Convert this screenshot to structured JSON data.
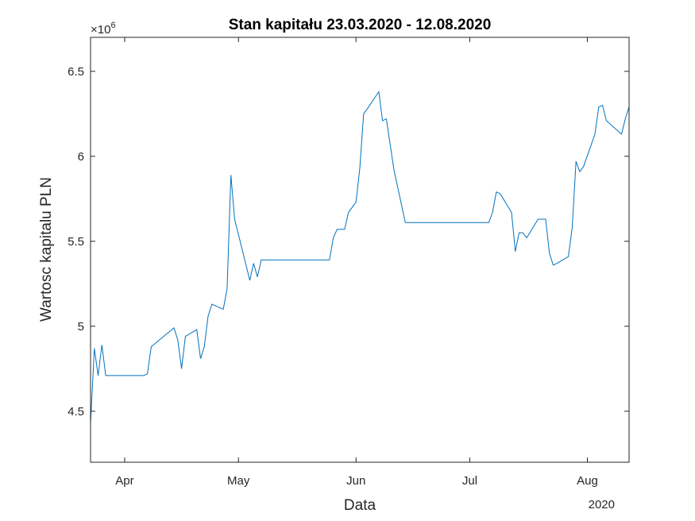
{
  "chart_data": {
    "type": "line",
    "title": "Stan kapitału 23.03.2020 - 12.08.2020",
    "xlabel": "Data",
    "ylabel": "Wartosc kapitalu PLN",
    "y_exponent_prefix": "×10",
    "y_exponent_power": "6",
    "year_label": "2020",
    "x_start": "2020-03-23",
    "x_end": "2020-08-12",
    "x_ticks": [
      {
        "date": "2020-04-01",
        "label": "Apr"
      },
      {
        "date": "2020-05-01",
        "label": "May"
      },
      {
        "date": "2020-06-01",
        "label": "Jun"
      },
      {
        "date": "2020-07-01",
        "label": "Jul"
      },
      {
        "date": "2020-08-01",
        "label": "Aug"
      }
    ],
    "ylim": [
      4.2,
      6.7
    ],
    "y_ticks": [
      {
        "value": 4.5,
        "label": "4.5"
      },
      {
        "value": 5.0,
        "label": "5"
      },
      {
        "value": 5.5,
        "label": "5.5"
      },
      {
        "value": 6.0,
        "label": "6"
      },
      {
        "value": 6.5,
        "label": "6.5"
      }
    ],
    "grid": false,
    "line_color": "#0072BD",
    "series": [
      {
        "x": [
          "2020-03-23",
          "2020-03-24",
          "2020-03-25",
          "2020-03-26",
          "2020-03-27",
          "2020-03-28",
          "2020-04-06",
          "2020-04-07",
          "2020-04-08",
          "2020-04-14",
          "2020-04-15",
          "2020-04-16",
          "2020-04-17",
          "2020-04-20",
          "2020-04-21",
          "2020-04-22",
          "2020-04-23",
          "2020-04-24",
          "2020-04-27",
          "2020-04-28",
          "2020-04-29",
          "2020-04-30",
          "2020-05-01",
          "2020-05-04",
          "2020-05-05",
          "2020-05-06",
          "2020-05-07",
          "2020-05-25",
          "2020-05-26",
          "2020-05-27",
          "2020-05-29",
          "2020-05-30",
          "2020-06-01",
          "2020-06-02",
          "2020-06-03",
          "2020-06-04",
          "2020-06-07",
          "2020-06-08",
          "2020-06-09",
          "2020-06-11",
          "2020-06-14",
          "2020-07-06",
          "2020-07-07",
          "2020-07-08",
          "2020-07-09",
          "2020-07-12",
          "2020-07-13",
          "2020-07-14",
          "2020-07-15",
          "2020-07-16",
          "2020-07-19",
          "2020-07-20",
          "2020-07-21",
          "2020-07-22",
          "2020-07-23",
          "2020-07-24",
          "2020-07-27",
          "2020-07-28",
          "2020-07-29",
          "2020-07-30",
          "2020-07-31",
          "2020-08-03",
          "2020-08-04",
          "2020-08-05",
          "2020-08-06",
          "2020-08-10",
          "2020-08-11",
          "2020-08-12"
        ],
        "y": [
          4.43,
          4.87,
          4.71,
          4.89,
          4.71,
          4.71,
          4.71,
          4.72,
          4.88,
          4.99,
          4.92,
          4.75,
          4.94,
          4.98,
          4.81,
          4.88,
          5.06,
          5.13,
          5.1,
          5.22,
          5.89,
          5.63,
          5.54,
          5.27,
          5.37,
          5.29,
          5.39,
          5.39,
          5.52,
          5.57,
          5.57,
          5.67,
          5.73,
          5.93,
          6.25,
          6.28,
          6.38,
          6.21,
          6.22,
          5.92,
          5.61,
          5.61,
          5.67,
          5.79,
          5.78,
          5.67,
          5.44,
          5.55,
          5.55,
          5.52,
          5.63,
          5.63,
          5.63,
          5.43,
          5.36,
          5.37,
          5.41,
          5.58,
          5.97,
          5.91,
          5.94,
          6.13,
          6.29,
          6.3,
          6.21,
          6.13,
          6.22,
          6.29
        ]
      }
    ]
  }
}
